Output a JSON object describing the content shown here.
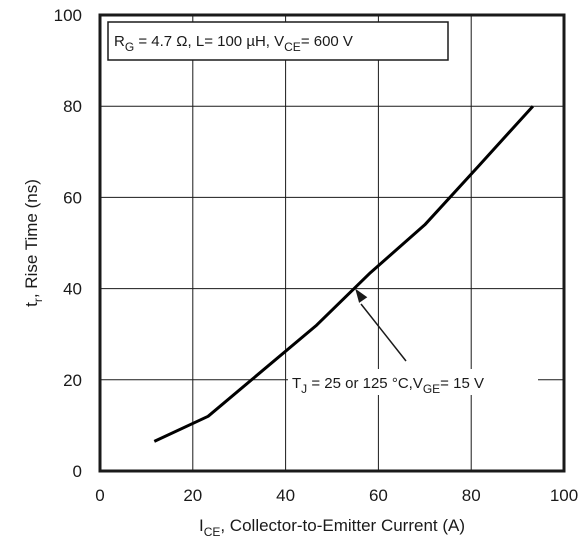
{
  "chart_data": {
    "type": "line",
    "xlabel": {
      "main": "I",
      "sub": "CE",
      "rest": ", Collector-to-Emitter Current (A)"
    },
    "ylabel": {
      "main": "t",
      "sub": "r",
      "rest": ", Rise Time (ns)"
    },
    "xlim": [
      0,
      100
    ],
    "ylim": [
      0,
      100
    ],
    "x_ticks": [
      "0",
      "20",
      "40",
      "60",
      "80",
      "100"
    ],
    "y_ticks": [
      "0",
      "20",
      "40",
      "60",
      "80",
      "100"
    ],
    "grid": true,
    "series": [
      {
        "x": [
          11.7,
          23.3,
          35,
          46.7,
          58.3,
          70,
          81.7,
          93.3
        ],
        "values": [
          6.5,
          12,
          22,
          32,
          43.5,
          54,
          67,
          80
        ]
      }
    ],
    "conditions_box": {
      "p1": "R",
      "s1": "G",
      "p2": " = 4.7 Ω, L= 100 µH, V",
      "s2": "CE",
      "p3": "=  600 V"
    },
    "annotation": {
      "p1": "T",
      "s1": "J",
      "p2": " = 25 or 125 °C,V",
      "s2": "GE",
      "p3": "= 15 V",
      "point_x": 55,
      "point_y": 40
    }
  }
}
